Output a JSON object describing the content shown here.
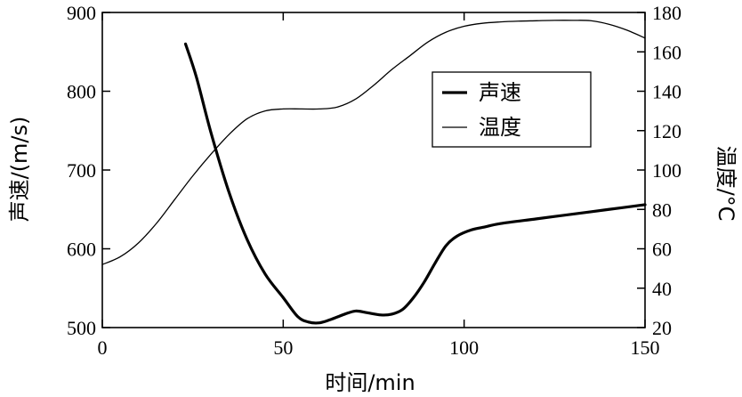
{
  "chart_data": {
    "type": "line",
    "xlabel": "时间/min",
    "ylabel_left": "声速/(m/s)",
    "ylabel_right": "温度/°C",
    "xlim": [
      0,
      150
    ],
    "ylim_left": [
      500,
      900
    ],
    "ylim_right": [
      20,
      180
    ],
    "x_ticks": [
      "0",
      "50",
      "100",
      "150"
    ],
    "y_left_ticks": [
      "500",
      "600",
      "700",
      "800",
      "900"
    ],
    "y_right_ticks": [
      "20",
      "40",
      "60",
      "80",
      "100",
      "120",
      "140",
      "160",
      "180"
    ],
    "grid": false,
    "legend_position": "top-right inside",
    "series": [
      {
        "name": "声速",
        "axis": "left",
        "color": "#000000",
        "style": "thick",
        "x": [
          23,
          26,
          30,
          35,
          40,
          45,
          50,
          54,
          57,
          60,
          63,
          67,
          70,
          73,
          77,
          80,
          83,
          86,
          89,
          92,
          95,
          98,
          102,
          106,
          110,
          120,
          130,
          140,
          150
        ],
        "y": [
          860,
          818,
          748,
          672,
          612,
          568,
          538,
          514,
          507,
          506,
          510,
          517,
          521,
          519,
          516,
          517,
          523,
          538,
          558,
          582,
          604,
          616,
          624,
          628,
          632,
          638,
          644,
          650,
          656
        ]
      },
      {
        "name": "温度",
        "axis": "right",
        "color": "#000000",
        "style": "thin",
        "x": [
          0,
          5,
          10,
          15,
          20,
          25,
          30,
          35,
          40,
          45,
          50,
          55,
          60,
          65,
          70,
          75,
          80,
          85,
          90,
          95,
          100,
          105,
          110,
          115,
          120,
          125,
          130,
          135,
          140,
          145,
          150
        ],
        "y": [
          52,
          56,
          63,
          73,
          85,
          97,
          108,
          118,
          126,
          130,
          131,
          131,
          131,
          132,
          136,
          143,
          151,
          158,
          165,
          170,
          173,
          174.5,
          175.2,
          175.6,
          175.8,
          176,
          176,
          175.8,
          174,
          171,
          167
        ]
      }
    ]
  }
}
